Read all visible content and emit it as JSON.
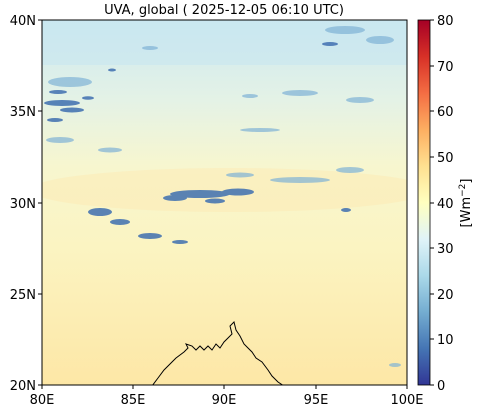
{
  "title": "UVA, global ( 2025-12-05 06:10 UTC)",
  "map": {
    "lon_ticks": [
      "80E",
      "85E",
      "90E",
      "95E",
      "100E"
    ],
    "lat_ticks": [
      "40N",
      "35N",
      "30N",
      "25N",
      "20N"
    ],
    "lon_range": [
      80,
      100
    ],
    "lat_range": [
      20,
      40
    ]
  },
  "colorbar": {
    "label": "[Wm",
    "label_exponent": "−2",
    "label_close": "]",
    "ticks": [
      "80",
      "70",
      "60",
      "50",
      "40",
      "30",
      "20",
      "10",
      "0"
    ],
    "range": [
      0,
      80
    ],
    "colormap": "RdYlBu_r"
  },
  "colors": {
    "low": "#313695",
    "mid_low": "#abd9e9",
    "mid": "#ffffbf",
    "mid_high": "#fdae61",
    "high": "#a50026"
  }
}
